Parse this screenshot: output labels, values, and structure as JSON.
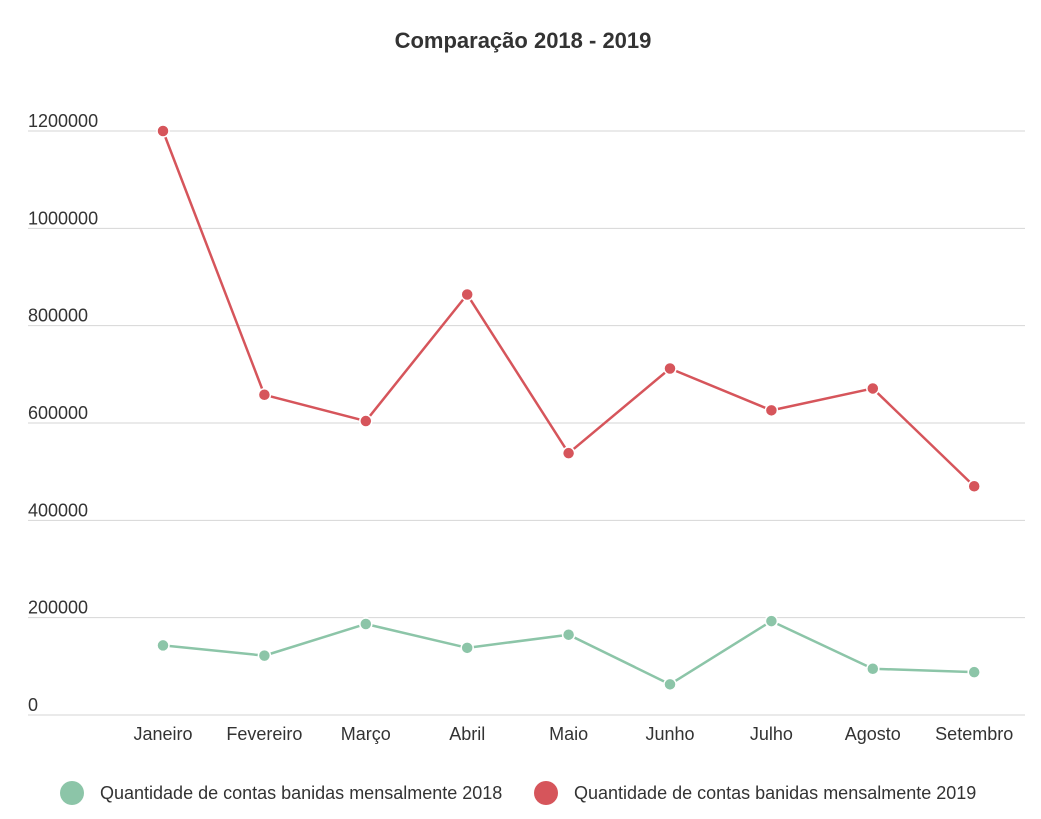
{
  "chart_data": {
    "type": "line",
    "title": "Comparação 2018 - 2019",
    "xlabel": "",
    "ylabel": "",
    "categories": [
      "Janeiro",
      "Fevereiro",
      "Março",
      "Abril",
      "Maio",
      "Junho",
      "Julho",
      "Agosto",
      "Setembro"
    ],
    "y_ticks": [
      "0",
      "200000",
      "400000",
      "600000",
      "800000",
      "1000000",
      "1200000"
    ],
    "ylim": [
      0,
      1200000
    ],
    "grid": true,
    "legend_position": "bottom",
    "series": [
      {
        "name": "Quantidade de contas banidas mensalmente 2018",
        "color": "#8cc5a8",
        "values": [
          143000,
          122000,
          187000,
          138000,
          165000,
          63000,
          193000,
          95000,
          88000
        ]
      },
      {
        "name": "Quantidade de contas banidas mensalmente 2019",
        "color": "#d6555b",
        "values": [
          1200000,
          658000,
          604000,
          864000,
          538000,
          712000,
          626000,
          671000,
          470000
        ]
      }
    ]
  }
}
